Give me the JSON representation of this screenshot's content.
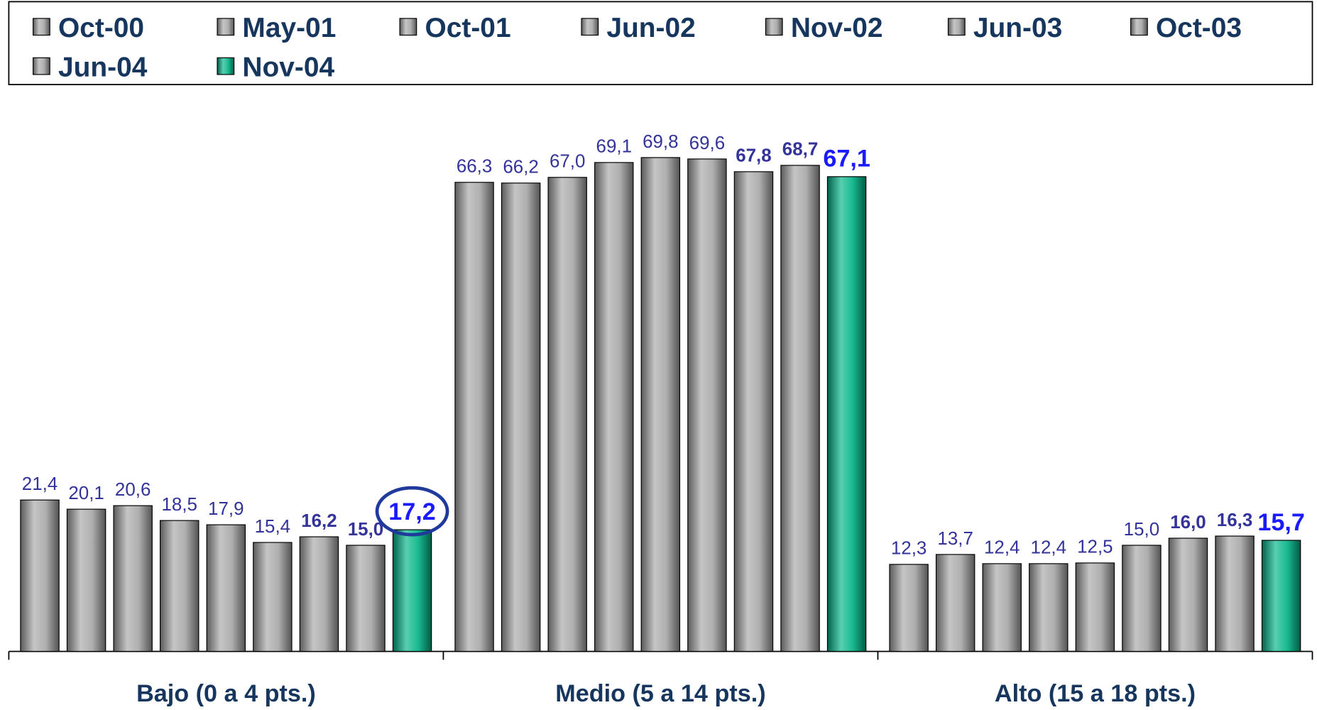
{
  "chart_data": {
    "type": "bar",
    "categories": [
      "Bajo (0 a 4 pts.)",
      "Medio (5 a 14 pts.)",
      "Alto (15 a 18 pts.)"
    ],
    "series": [
      {
        "name": "Oct-00",
        "color": "#a6a6a6",
        "values": [
          21.4,
          66.3,
          12.3
        ],
        "value_labels": [
          "21,4",
          "66,3",
          "12,3"
        ]
      },
      {
        "name": "May-01",
        "color": "#a6a6a6",
        "values": [
          20.1,
          66.2,
          13.7
        ],
        "value_labels": [
          "20,1",
          "66,2",
          "13,7"
        ]
      },
      {
        "name": "Oct-01",
        "color": "#a6a6a6",
        "values": [
          20.6,
          67.0,
          12.4
        ],
        "value_labels": [
          "20,6",
          "67,0",
          "12,4"
        ]
      },
      {
        "name": "Jun-02",
        "color": "#a6a6a6",
        "values": [
          18.5,
          69.1,
          12.4
        ],
        "value_labels": [
          "18,5",
          "69,1",
          "12,4"
        ]
      },
      {
        "name": "Nov-02",
        "color": "#a6a6a6",
        "values": [
          17.9,
          69.8,
          12.5
        ],
        "value_labels": [
          "17,9",
          "69,8",
          "12,5"
        ]
      },
      {
        "name": "Jun-03",
        "color": "#a6a6a6",
        "values": [
          15.4,
          69.6,
          15.0
        ],
        "value_labels": [
          "15,4",
          "69,6",
          "15,0"
        ]
      },
      {
        "name": "Oct-03",
        "color": "#a6a6a6",
        "values": [
          16.2,
          67.8,
          16.0
        ],
        "value_labels": [
          "16,2",
          "67,8",
          "16,0"
        ]
      },
      {
        "name": "Jun-04",
        "color": "#a6a6a6",
        "values": [
          15.0,
          68.7,
          16.3
        ],
        "value_labels": [
          "15,0",
          "68,7",
          "16,3"
        ]
      },
      {
        "name": "Nov-04",
        "color": "#00b386",
        "values": [
          17.2,
          67.1,
          15.7
        ],
        "value_labels": [
          "17,2",
          "67,1",
          "15,7"
        ]
      }
    ],
    "ylim": [
      0,
      80
    ],
    "legend": "top"
  }
}
